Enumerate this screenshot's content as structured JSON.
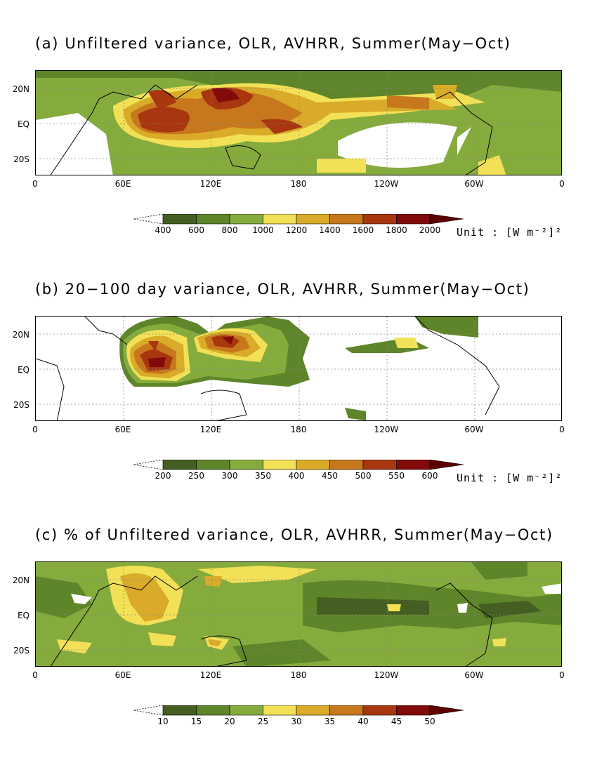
{
  "panels": [
    {
      "title": "(a) Unfiltered variance, OLR, AVHRR, Summer(May−Oct)",
      "colorbar_ticks": [
        "400",
        "600",
        "800",
        "1000",
        "1200",
        "1400",
        "1600",
        "1800",
        "2000"
      ],
      "unit": "Unit : [W m⁻²]²"
    },
    {
      "title": "(b) 20−100 day variance, OLR, AVHRR, Summer(May−Oct)",
      "colorbar_ticks": [
        "200",
        "250",
        "300",
        "350",
        "400",
        "450",
        "500",
        "550",
        "600"
      ],
      "unit": "Unit : [W m⁻²]²"
    },
    {
      "title": "(c) % of Unfiltered variance, OLR, AVHRR, Summer(May−Oct)",
      "colorbar_ticks": [
        "10",
        "15",
        "20",
        "25",
        "30",
        "35",
        "40",
        "45",
        "50"
      ],
      "unit": ""
    }
  ],
  "axes": {
    "lat_ticks": [
      "20N",
      "EQ",
      "20S"
    ],
    "lon_ticks": [
      "0",
      "60E",
      "120E",
      "180",
      "120W",
      "60W",
      "0"
    ]
  },
  "colors": {
    "levels": [
      "#455e21",
      "#5e8529",
      "#85ab3d",
      "#f2e057",
      "#d9ab29",
      "#c7781c",
      "#a8360f",
      "#820a08",
      "#5c0000"
    ]
  }
}
